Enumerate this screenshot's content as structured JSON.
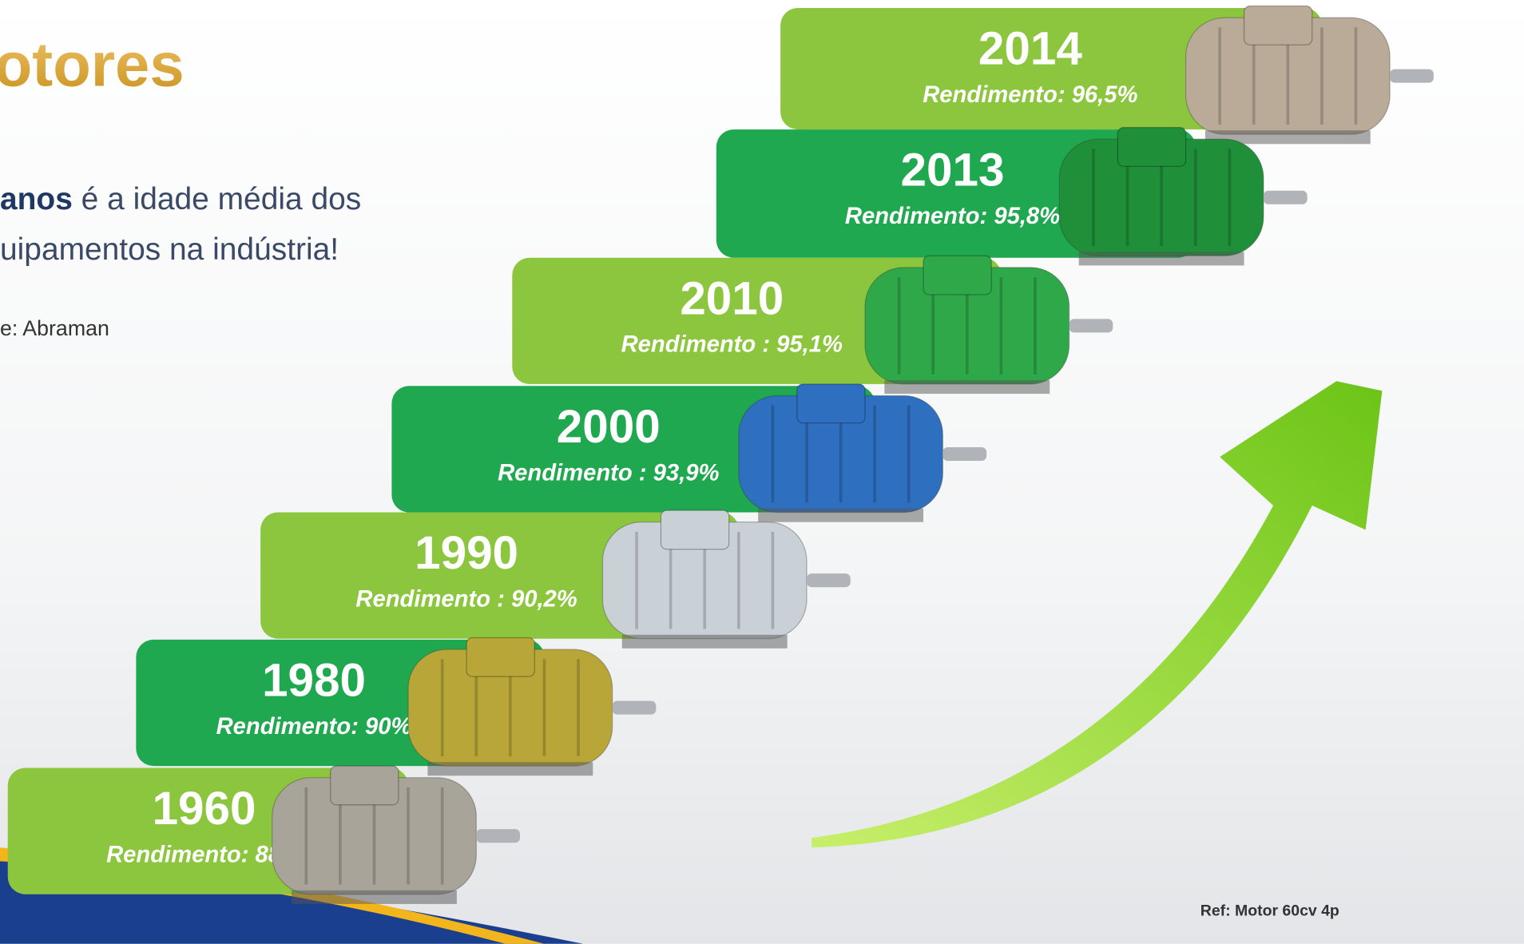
{
  "title": "otores",
  "intro": {
    "bold": "anos",
    "line1": " é a idade média dos",
    "line2": "uipamentos na indústria!"
  },
  "source": "e: Abraman",
  "steps": [
    {
      "year": "2014",
      "label": "Rendimento: 96,5%"
    },
    {
      "year": "2013",
      "label": "Rendimento: 95,8%"
    },
    {
      "year": "2010",
      "label": "Rendimento : 95,1%"
    },
    {
      "year": "2000",
      "label": "Rendimento : 93,9%"
    },
    {
      "year": "1990",
      "label": "Rendimento : 90,2%"
    },
    {
      "year": "1980",
      "label": "Rendimento: 90%"
    },
    {
      "year": "1960",
      "label": "Rendimento: 88%"
    }
  ],
  "ref": "Ref: Motor 60cv 4p"
}
